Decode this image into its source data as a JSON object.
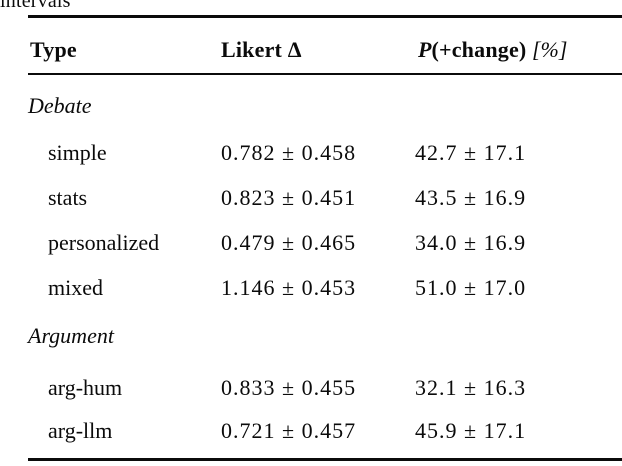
{
  "page": {
    "background_color": "#ffffff",
    "text_color": "#0b0b0b"
  },
  "caption_fragment": "intervals",
  "table": {
    "header": {
      "type": "Type",
      "likert": "Likert Δ",
      "pchange": {
        "p": "P",
        "open": "(+",
        "emph": "change",
        "close": ")",
        "unit": " [%]"
      }
    },
    "groups": [
      {
        "label": "Debate",
        "rows": [
          {
            "type": "simple",
            "likert": "0.782 ± 0.458",
            "pchange": "42.7 ± 17.1"
          },
          {
            "type": "stats",
            "likert": "0.823 ± 0.451",
            "pchange": "43.5 ± 16.9"
          },
          {
            "type": "personalized",
            "likert": "0.479 ± 0.465",
            "pchange": "34.0 ± 16.9"
          },
          {
            "type": "mixed",
            "likert": "1.146 ± 0.453",
            "pchange": "51.0 ± 17.0"
          }
        ]
      },
      {
        "label": "Argument",
        "rows": [
          {
            "type": "arg-hum",
            "likert": "0.833 ± 0.455",
            "pchange": "32.1 ± 16.3"
          },
          {
            "type": "arg-llm",
            "likert": "0.721 ± 0.457",
            "pchange": "45.9 ± 17.1"
          }
        ]
      }
    ]
  }
}
